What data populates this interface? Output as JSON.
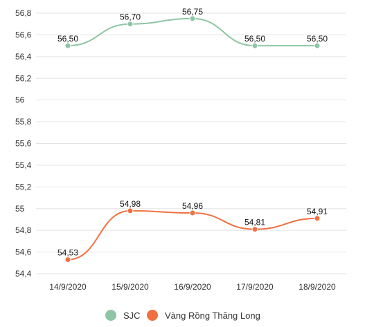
{
  "chart_data": {
    "type": "line",
    "title": "",
    "xlabel": "",
    "ylabel": "",
    "categories": [
      "14/9/2020",
      "15/9/2020",
      "16/9/2020",
      "17/9/2020",
      "18/9/2020"
    ],
    "y_ticks": [
      "56,8",
      "56,6",
      "56,4",
      "56,2",
      "56",
      "55,8",
      "55,6",
      "55,4",
      "55,2",
      "55",
      "54,8",
      "54,6",
      "54,4"
    ],
    "ylim": [
      54.4,
      56.8
    ],
    "grid": true,
    "legend_position": "bottom",
    "series": [
      {
        "name": "SJC",
        "color": "#8ec5a4",
        "values": [
          56.5,
          56.7,
          56.75,
          56.5,
          56.5
        ],
        "labels": [
          "56,50",
          "56,70",
          "56,75",
          "56,50",
          "56,50"
        ]
      },
      {
        "name": "Vàng Rồng Thăng Long",
        "color": "#f07040",
        "values": [
          54.53,
          54.98,
          54.96,
          54.81,
          54.91
        ],
        "labels": [
          "54,53",
          "54,98",
          "54,96",
          "54,81",
          "54,91"
        ]
      }
    ]
  }
}
